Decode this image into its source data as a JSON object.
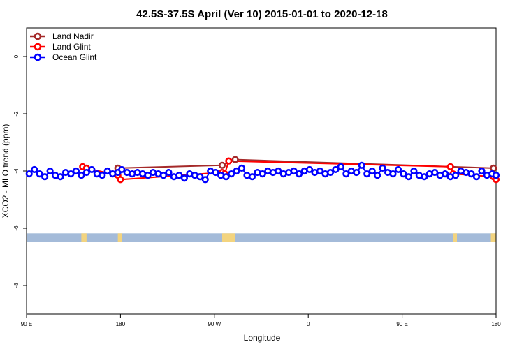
{
  "chart_data": {
    "type": "line",
    "title": "42.5S-37.5S April (Ver 10)   2015-01-01 to 2020-12-18",
    "xlabel": "Longitude",
    "ylabel": "XCO2 - MLO trend (ppm)",
    "xlim": [
      90,
      450
    ],
    "ylim": [
      -9,
      1
    ],
    "x_ticks": [
      {
        "value": 90,
        "label": "90 E"
      },
      {
        "value": 162,
        "label": "180"
      },
      {
        "value": 234,
        "label": "90 W"
      },
      {
        "value": 306,
        "label": "0"
      },
      {
        "value": 378,
        "label": "90 E"
      },
      {
        "value": 450,
        "label": "180"
      }
    ],
    "y_ticks": [
      {
        "value": 0,
        "label": "0"
      },
      {
        "value": -2,
        "label": "-2"
      },
      {
        "value": -4,
        "label": "-4"
      },
      {
        "value": -6,
        "label": "-6"
      },
      {
        "value": -8,
        "label": "-8"
      }
    ],
    "grid": false,
    "legend_position": "top-left",
    "series": [
      {
        "name": "Land Nadir",
        "color": "#a52a2a",
        "x": [
          160,
          240,
          250,
          448
        ],
        "y": [
          -3.9,
          -3.8,
          -3.6,
          -3.9
        ]
      },
      {
        "name": "Land Glint",
        "color": "#ff0000",
        "x": [
          133,
          136,
          160,
          162,
          240,
          242,
          245,
          415,
          417,
          448,
          450
        ],
        "y": [
          -3.85,
          -3.9,
          -4.15,
          -4.3,
          -4.05,
          -4.1,
          -3.65,
          -3.85,
          -4.1,
          -4.2,
          -4.3
        ]
      },
      {
        "name": "Ocean Glint",
        "color": "#0000ff",
        "x": [
          92,
          96,
          100,
          104,
          108,
          112,
          116,
          120,
          124,
          128,
          132,
          136,
          140,
          144,
          148,
          152,
          156,
          160,
          163,
          167,
          171,
          175,
          179,
          183,
          187,
          191,
          195,
          199,
          203,
          207,
          211,
          215,
          219,
          223,
          227,
          231,
          235,
          239,
          243,
          247,
          251,
          255,
          259,
          263,
          267,
          271,
          275,
          279,
          283,
          287,
          291,
          295,
          299,
          303,
          307,
          311,
          315,
          319,
          323,
          327,
          331,
          335,
          339,
          343,
          347,
          351,
          355,
          359,
          363,
          367,
          371,
          375,
          379,
          383,
          387,
          391,
          395,
          399,
          403,
          407,
          411,
          415,
          419,
          423,
          427,
          431,
          435,
          439,
          443,
          447,
          450
        ],
        "y": [
          -4.1,
          -3.95,
          -4.1,
          -4.2,
          -4.0,
          -4.15,
          -4.2,
          -4.05,
          -4.1,
          -4.0,
          -4.15,
          -4.05,
          -3.95,
          -4.1,
          -4.15,
          -4.0,
          -4.1,
          -4.05,
          -3.95,
          -4.05,
          -4.1,
          -4.05,
          -4.1,
          -4.15,
          -4.05,
          -4.1,
          -4.15,
          -4.05,
          -4.2,
          -4.15,
          -4.25,
          -4.1,
          -4.15,
          -4.2,
          -4.3,
          -4.0,
          -4.05,
          -4.15,
          -4.2,
          -4.1,
          -4.0,
          -3.9,
          -4.15,
          -4.2,
          -4.05,
          -4.1,
          -4.0,
          -4.05,
          -4.0,
          -4.1,
          -4.05,
          -4.0,
          -4.1,
          -4.0,
          -3.95,
          -4.05,
          -4.0,
          -4.1,
          -4.05,
          -3.95,
          -3.85,
          -4.1,
          -4.0,
          -4.05,
          -3.8,
          -4.1,
          -4.0,
          -4.15,
          -3.9,
          -4.05,
          -4.1,
          -3.95,
          -4.1,
          -4.2,
          -4.0,
          -4.15,
          -4.2,
          -4.1,
          -4.05,
          -4.15,
          -4.1,
          -4.2,
          -4.15,
          -4.0,
          -4.05,
          -4.1,
          -4.2,
          -4.0,
          -4.15,
          -4.1,
          -4.15
        ]
      }
    ],
    "land_band": {
      "y": -6.3,
      "band_color": "#a4bbd9",
      "land_color": "#f3d47f",
      "land_ranges": [
        [
          132,
          136
        ],
        [
          160,
          163
        ],
        [
          240,
          250
        ],
        [
          417,
          420
        ],
        [
          446,
          450
        ]
      ]
    }
  }
}
